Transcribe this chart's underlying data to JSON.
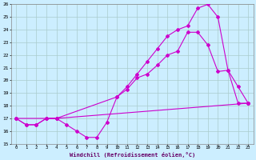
{
  "xlabel": "Windchill (Refroidissement éolien,°C)",
  "bg_color": "#cceeff",
  "grid_color": "#aacccc",
  "line_color": "#cc00cc",
  "xlim": [
    -0.5,
    23.5
  ],
  "ylim": [
    15,
    26
  ],
  "yticks": [
    15,
    16,
    17,
    18,
    19,
    20,
    21,
    22,
    23,
    24,
    25,
    26
  ],
  "xticks": [
    0,
    1,
    2,
    3,
    4,
    5,
    6,
    7,
    8,
    9,
    10,
    11,
    12,
    13,
    14,
    15,
    16,
    17,
    18,
    19,
    20,
    21,
    22,
    23
  ],
  "series1_x": [
    0,
    1,
    2,
    3,
    4,
    5,
    6,
    7,
    8,
    9,
    10,
    11,
    12,
    13,
    14,
    15,
    16,
    17,
    18,
    19,
    20,
    21,
    22,
    23
  ],
  "series1_y": [
    17.0,
    16.5,
    16.5,
    17.0,
    17.0,
    16.5,
    16.0,
    15.5,
    15.5,
    16.7,
    18.7,
    19.3,
    20.2,
    20.5,
    21.2,
    22.0,
    22.3,
    23.8,
    23.8,
    22.8,
    20.7,
    20.8,
    18.2,
    18.2
  ],
  "series2_x": [
    0,
    1,
    2,
    3,
    4,
    23
  ],
  "series2_y": [
    17.0,
    16.5,
    16.5,
    17.0,
    17.0,
    18.2
  ],
  "series3_x": [
    0,
    3,
    4,
    10,
    11,
    12,
    13,
    14,
    15,
    16,
    17,
    18,
    19,
    20,
    21,
    22,
    23
  ],
  "series3_y": [
    17.0,
    17.0,
    17.0,
    18.7,
    19.5,
    20.5,
    21.5,
    22.5,
    23.5,
    24.0,
    24.3,
    25.7,
    26.0,
    25.0,
    20.8,
    19.5,
    18.2
  ]
}
